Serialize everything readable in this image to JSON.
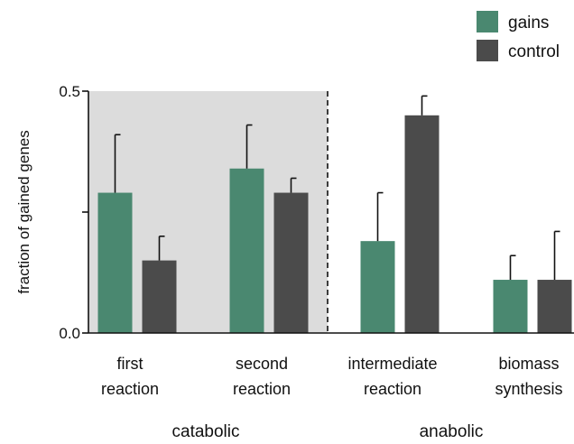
{
  "chart_data": {
    "type": "bar",
    "title": "",
    "xlabel": "",
    "ylabel": "fraction of gained genes",
    "ylim": [
      0,
      0.5
    ],
    "yticks": [
      0.0,
      0.25,
      0.5
    ],
    "ytick_labels": [
      "0.0",
      "",
      "0.5"
    ],
    "categories": [
      [
        "first",
        "reaction"
      ],
      [
        "second",
        "reaction"
      ],
      [
        "intermediate",
        "reaction"
      ],
      [
        "biomass",
        "synthesis"
      ]
    ],
    "groups": [
      {
        "label": "catabolic",
        "categories": [
          0,
          1
        ],
        "shaded": true
      },
      {
        "label": "anabolic",
        "categories": [
          2,
          3
        ],
        "shaded": false
      }
    ],
    "series": [
      {
        "name": "gains",
        "color": "#4a8870",
        "values": [
          0.29,
          0.34,
          0.19,
          0.11
        ],
        "errors": [
          0.12,
          0.09,
          0.1,
          0.05
        ]
      },
      {
        "name": "control",
        "color": "#4b4b4b",
        "values": [
          0.15,
          0.29,
          0.45,
          0.11
        ],
        "errors": [
          0.05,
          0.03,
          0.04,
          0.1
        ]
      }
    ],
    "legend_position": "top-right",
    "grid": false,
    "divider": "dashed line between catabolic and anabolic"
  }
}
